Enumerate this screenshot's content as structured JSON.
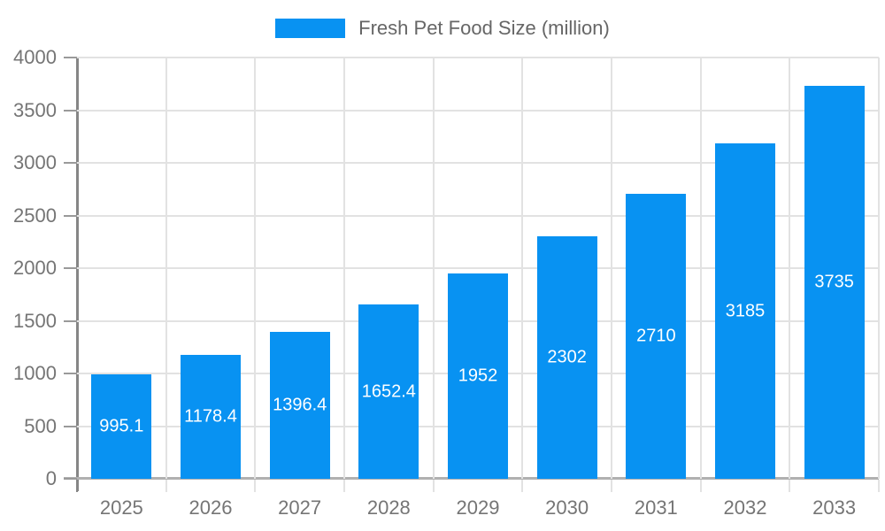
{
  "chart_data": {
    "type": "bar",
    "legend": "Fresh Pet Food Size (million)",
    "categories": [
      "2025",
      "2026",
      "2027",
      "2028",
      "2029",
      "2030",
      "2031",
      "2032",
      "2033"
    ],
    "series": [
      {
        "name": "Fresh Pet Food Size (million)",
        "values": [
          995.1,
          1178.4,
          1396.4,
          1652.4,
          1952,
          2302,
          2710,
          3185,
          3735
        ],
        "value_labels": [
          "995.1",
          "1178.4",
          "1396.4",
          "1652.4",
          "1952",
          "2302",
          "2710",
          "3185",
          "3735"
        ]
      }
    ],
    "title": "",
    "xlabel": "",
    "ylabel": "",
    "ylim": [
      0,
      4000
    ],
    "ytick_interval": 500,
    "ytick_labels": [
      "0",
      "500",
      "1000",
      "1500",
      "2000",
      "2500",
      "3000",
      "3500",
      "4000"
    ],
    "grid": true,
    "legend_position": "top-center",
    "value_label_position": "inside-center",
    "colors": {
      "bar": "#0892f2",
      "grid_line": "#e2e2e2",
      "y_axis_line": "#868686",
      "x_axis_line": "#b0b0b0",
      "tick_label": "#757575",
      "legend_text": "#666666",
      "value_label": "#ffffff",
      "background": "#ffffff"
    }
  }
}
